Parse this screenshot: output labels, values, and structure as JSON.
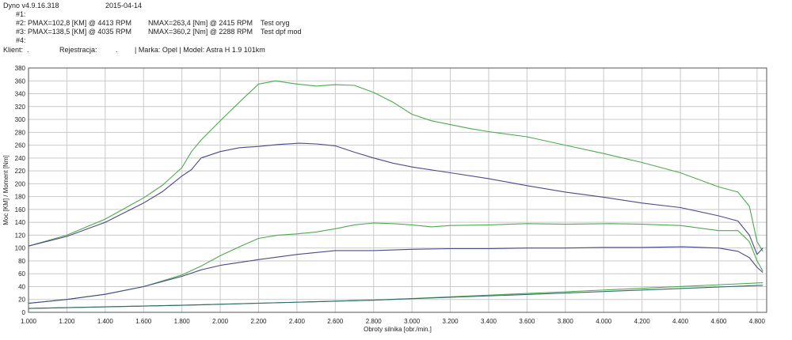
{
  "header": {
    "software": "Dyno v4.9.16.318",
    "date": "2015-04-14",
    "run1_id": "#1:",
    "run2_id": "#2:",
    "run2_pmax": "PMAX=102,8 [KM] @ 4413 RPM",
    "run2_nmax": "NMAX=263,4 [Nm] @ 2415 RPM",
    "run2_name": "Test oryg",
    "run3_id": "#3:",
    "run3_pmax": "PMAX=138,5 [KM] @ 4035 RPM",
    "run3_nmax": "NMAX=360,2 [Nm] @ 2288 RPM",
    "run3_name": "Test dpf mod",
    "run4_id": "#4:",
    "client_label": "Klient:",
    "client_value": ".",
    "reg_label": "Rejestracja:",
    "reg_value": ".",
    "vehicle": "| Marka: Opel | Model: Astra H 1.9 101km"
  },
  "chart_data": {
    "type": "line",
    "xlabel": "Obroty silnika [obr./min.]",
    "ylabel": "Moc [KM] / Moment [Nm]",
    "xlim": [
      1000,
      4850
    ],
    "ylim": [
      0,
      380
    ],
    "x_ticks": [
      1000,
      1200,
      1400,
      1600,
      1800,
      2000,
      2200,
      2400,
      2600,
      2800,
      3000,
      3200,
      3400,
      3600,
      3800,
      4000,
      4200,
      4400,
      4600,
      4800
    ],
    "x_tick_labels": [
      "1.000",
      "1.200",
      "1.400",
      "1.600",
      "1.800",
      "2.000",
      "2.200",
      "2.400",
      "2.600",
      "2.800",
      "3.000",
      "3.200",
      "3.400",
      "3.600",
      "3.800",
      "4.000",
      "4.200",
      "4.400",
      "4.600",
      "4.800"
    ],
    "y_ticks": [
      0,
      20,
      40,
      60,
      80,
      100,
      120,
      140,
      160,
      180,
      200,
      220,
      240,
      260,
      280,
      300,
      320,
      340,
      360,
      380
    ],
    "grid": true,
    "colors": {
      "green": "#4daa4d",
      "blue": "#4a4a8c",
      "teal": "#2e6b6b",
      "grid": "#c9c9c9"
    },
    "series": [
      {
        "color": "#4daa4d",
        "x": [
          1000,
          1200,
          1400,
          1600,
          1700,
          1800,
          1850,
          1900,
          2000,
          2100,
          2200,
          2288,
          2400,
          2500,
          2600,
          2700,
          2800,
          2900,
          3000,
          3100,
          3200,
          3300,
          3400,
          3600,
          3800,
          4000,
          4200,
          4400,
          4600,
          4700,
          4760,
          4800,
          4830
        ],
        "y": [
          103,
          120,
          145,
          178,
          198,
          225,
          250,
          268,
          298,
          327,
          355,
          360,
          355,
          352,
          354,
          353,
          342,
          327,
          308,
          298,
          292,
          286,
          281,
          273,
          260,
          247,
          233,
          217,
          195,
          187,
          165,
          110,
          95
        ]
      },
      {
        "color": "#4a4a8c",
        "x": [
          1000,
          1200,
          1400,
          1600,
          1700,
          1800,
          1850,
          1900,
          2000,
          2100,
          2200,
          2300,
          2415,
          2500,
          2600,
          2700,
          2800,
          2900,
          3000,
          3200,
          3400,
          3600,
          3800,
          4000,
          4200,
          4400,
          4600,
          4700,
          4760,
          4800,
          4830
        ],
        "y": [
          103,
          118,
          140,
          170,
          188,
          212,
          222,
          240,
          250,
          256,
          258,
          261,
          263,
          262,
          259,
          249,
          240,
          232,
          226,
          217,
          208,
          197,
          187,
          179,
          170,
          163,
          150,
          142,
          120,
          90,
          100
        ]
      },
      {
        "color": "#4daa4d",
        "x": [
          1000,
          1200,
          1400,
          1600,
          1800,
          1900,
          2000,
          2100,
          2200,
          2300,
          2400,
          2500,
          2600,
          2700,
          2800,
          2900,
          3000,
          3100,
          3200,
          3400,
          3600,
          3800,
          4035,
          4200,
          4400,
          4600,
          4700,
          4760,
          4800,
          4830
        ],
        "y": [
          14,
          20,
          28,
          40,
          58,
          72,
          88,
          102,
          115,
          120,
          122,
          125,
          130,
          136,
          139,
          138,
          136,
          133,
          135,
          136,
          138,
          137,
          138,
          137,
          135,
          127,
          127,
          110,
          80,
          64
        ]
      },
      {
        "color": "#4a4a8c",
        "x": [
          1000,
          1200,
          1400,
          1600,
          1800,
          1900,
          2000,
          2200,
          2400,
          2600,
          2800,
          3000,
          3200,
          3400,
          3600,
          3800,
          4000,
          4200,
          4413,
          4600,
          4700,
          4760,
          4800,
          4830
        ],
        "y": [
          14,
          20,
          28,
          40,
          56,
          66,
          73,
          82,
          90,
          96,
          96,
          98,
          99,
          99,
          100,
          100,
          101,
          101,
          102,
          100,
          95,
          85,
          70,
          62
        ]
      },
      {
        "color": "#4daa4d",
        "x": [
          1000,
          1800,
          2800,
          3800,
          4830
        ],
        "y": [
          6,
          11,
          19,
          32,
          46
        ]
      },
      {
        "color": "#2e6b6b",
        "x": [
          1000,
          1800,
          2800,
          3800,
          4830
        ],
        "y": [
          6,
          11,
          19,
          30,
          42
        ]
      }
    ]
  }
}
